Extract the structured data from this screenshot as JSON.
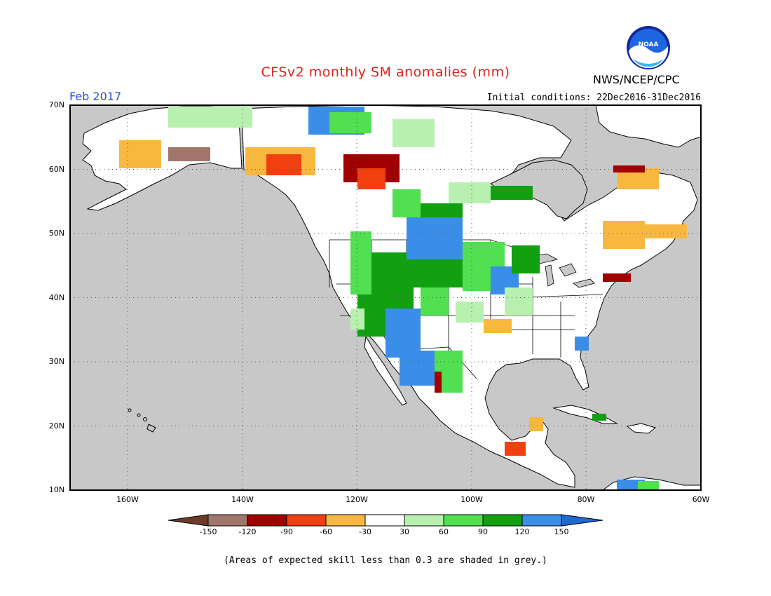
{
  "title": "CFSv2 monthly SM anomalies (mm)",
  "agency": "NWS/NCEP/CPC",
  "logo_text": "NOAA",
  "period": "Feb 2017",
  "initial_conditions": "Initial conditions: 22Dec2016-31Dec2016",
  "footer_note": "(Areas of expected skill less than 0.3 are shaded in grey.)",
  "lat_labels": [
    "70N",
    "60N",
    "50N",
    "40N",
    "30N",
    "20N",
    "10N"
  ],
  "lon_labels": [
    "160W",
    "140W",
    "120W",
    "100W",
    "80W",
    "60W"
  ],
  "colorbar": {
    "ticks": [
      "-150",
      "-120",
      "-90",
      "-60",
      "-30",
      "30",
      "60",
      "90",
      "120",
      "150"
    ],
    "colors": [
      "#6b3c2a",
      "#a0766a",
      "#a00000",
      "#f04010",
      "#f8b840",
      "#ffffff",
      "#b8f0b0",
      "#50e050",
      "#10a010",
      "#3a8ee8",
      "#1e6ad0"
    ]
  },
  "map_colors": {
    "ocean_grey": "#c8c8c8",
    "land_white": "#ffffff",
    "grid_line": "#555555"
  }
}
